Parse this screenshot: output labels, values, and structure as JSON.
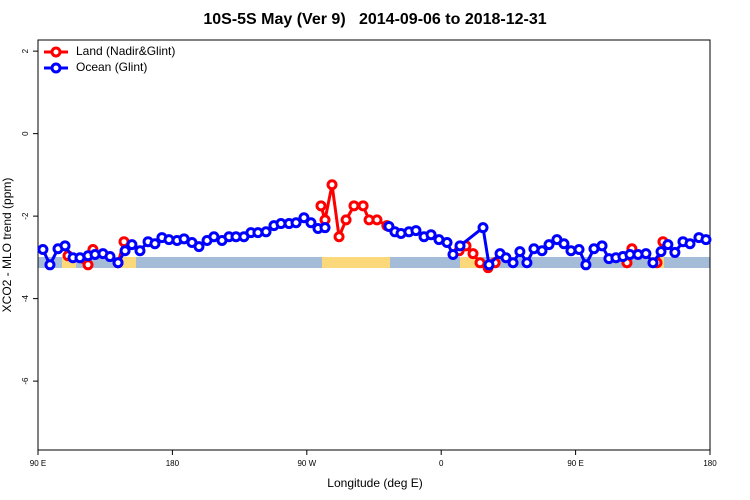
{
  "chart_data": {
    "type": "line",
    "title": "10S-5S May (Ver 9)   2014-09-06 to 2018-12-31",
    "xlabel": "Longitude (deg E)",
    "ylabel": "XCO2 - MLO trend (ppm)",
    "xlim": [
      90,
      540
    ],
    "ylim": [
      -7.67,
      2.27
    ],
    "xticks": [
      {
        "value": 90,
        "label": "90 E"
      },
      {
        "value": 180,
        "label": "180"
      },
      {
        "value": 270,
        "label": "90 W"
      },
      {
        "value": 360,
        "label": "0"
      },
      {
        "value": 450,
        "label": "90 E"
      },
      {
        "value": 540,
        "label": "180"
      }
    ],
    "yticks": [
      2,
      0,
      -2,
      -4,
      -6
    ],
    "legend": "top-left",
    "series": [
      {
        "name": "Land (Nadir&Glint)",
        "color": "#ff0000",
        "x": [
          110.1,
          123.5,
          126.8,
          135,
          143.6,
          147.6,
          200,
          279.5,
          282.2,
          286.9,
          291.6,
          296.3,
          301.6,
          307.7,
          311.7,
          317.0,
          323.6,
          350,
          372.0,
          376.6,
          381.3,
          386.0,
          391.4,
          396.1,
          440,
          484.4,
          487.7,
          495,
          504.5,
          508.5
        ],
        "values": [
          -2.96,
          -3.18,
          -2.81,
          null,
          -3.13,
          -2.62,
          null,
          -1.75,
          -2.09,
          -1.24,
          -2.5,
          -2.09,
          -1.75,
          -1.75,
          -2.09,
          -2.09,
          -2.23,
          null,
          -2.84,
          -2.72,
          -2.91,
          -3.13,
          -3.25,
          -3.13,
          null,
          -3.13,
          -2.79,
          null,
          -3.13,
          -2.62
        ]
      },
      {
        "name": "Ocean (Glint)",
        "color": "#0000ff",
        "x": [
          93.3,
          98.0,
          103.4,
          108.1,
          113.4,
          118.1,
          123.5,
          128.2,
          133.5,
          138.2,
          143.6,
          148.3,
          152.9,
          158.3,
          163.7,
          168.3,
          173.0,
          177.7,
          183.1,
          187.8,
          193.1,
          197.8,
          203.2,
          207.8,
          213.2,
          217.9,
          222.6,
          227.9,
          232.6,
          237.3,
          242.7,
          248.0,
          252.7,
          258.1,
          262.8,
          268.1,
          272.8,
          277.5,
          282.2,
          310,
          325.0,
          329.0,
          333.1,
          338.4,
          343.1,
          348.5,
          353.2,
          358.5,
          363.9,
          367.9,
          372.6,
          388.0,
          392.0,
          399.4,
          403.4,
          408.1,
          412.7,
          417.4,
          422.1,
          427.5,
          432.2,
          437.5,
          442.2,
          446.9,
          452.3,
          456.9,
          462.3,
          467.7,
          472.3,
          477.0,
          481.7,
          486.4,
          491.8,
          497.1,
          501.8,
          507.2,
          511.8,
          516.5,
          521.9,
          526.6,
          532.6,
          537.3
        ],
        "values": [
          -2.81,
          -3.18,
          -2.79,
          -2.72,
          -3.01,
          -3.01,
          -2.96,
          -2.93,
          -2.91,
          -2.98,
          -3.13,
          -2.84,
          -2.69,
          -2.84,
          -2.62,
          -2.67,
          -2.52,
          -2.57,
          -2.59,
          -2.55,
          -2.64,
          -2.74,
          -2.59,
          -2.5,
          -2.59,
          -2.5,
          -2.5,
          -2.5,
          -2.4,
          -2.4,
          -2.38,
          -2.23,
          -2.18,
          -2.18,
          -2.16,
          -2.04,
          -2.16,
          -2.3,
          -2.28,
          null,
          -2.25,
          -2.38,
          -2.42,
          -2.38,
          -2.35,
          -2.5,
          -2.45,
          -2.57,
          -2.64,
          -2.93,
          -2.72,
          -2.28,
          -3.18,
          -2.91,
          -3.01,
          -3.13,
          -2.86,
          -3.13,
          -2.79,
          -2.84,
          -2.69,
          -2.57,
          -2.67,
          -2.84,
          -2.81,
          -3.18,
          -2.79,
          -2.72,
          -3.03,
          -3.01,
          -2.98,
          -2.93,
          -2.93,
          -2.91,
          -3.13,
          -2.86,
          -2.69,
          -2.88,
          -2.62,
          -2.67,
          -2.52,
          -2.57
        ]
      }
    ]
  }
}
